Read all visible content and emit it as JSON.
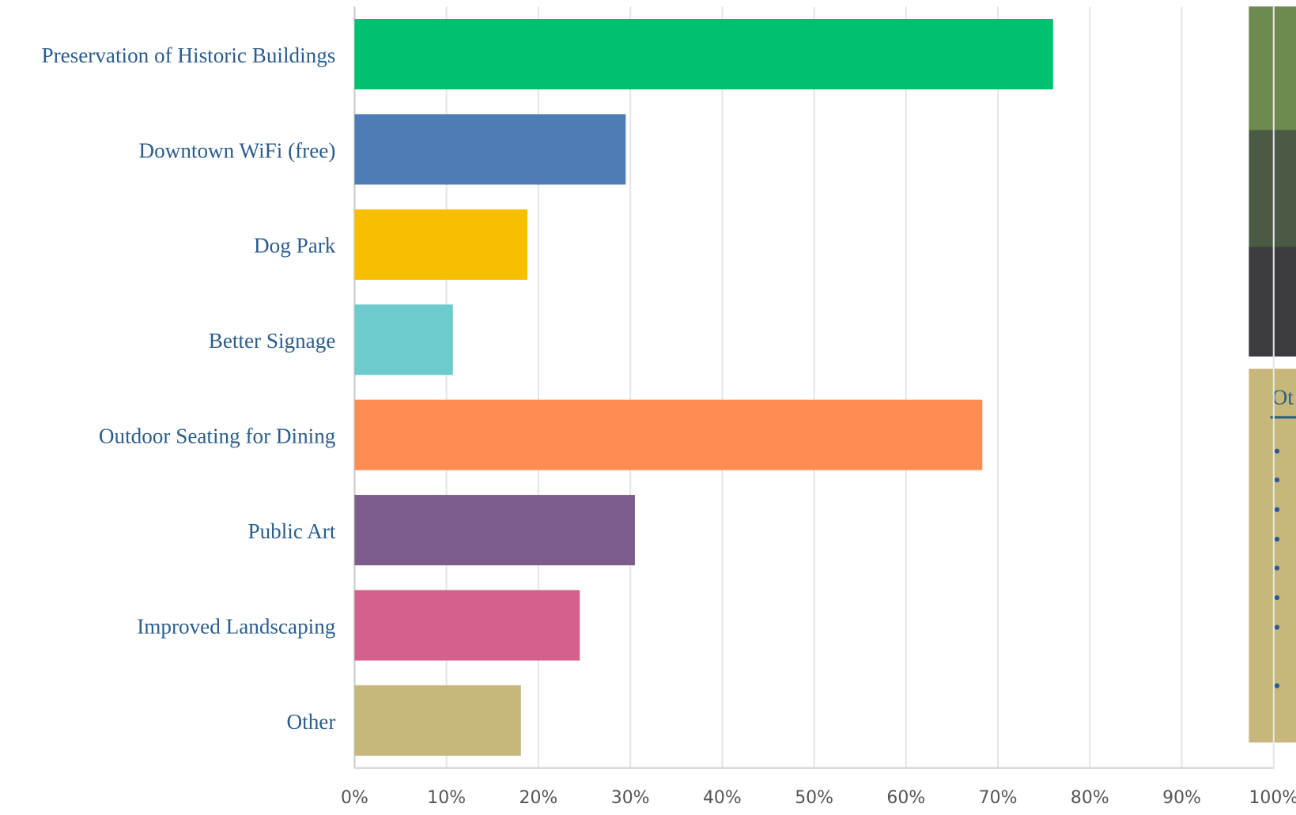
{
  "chart_data": {
    "type": "bar",
    "orientation": "horizontal",
    "categories": [
      "Preservation of Historic Buildings",
      "Downtown WiFi (free)",
      "Dog Park",
      "Better Signage",
      "Outdoor Seating for Dining",
      "Public Art",
      "Improved Landscaping",
      "Other"
    ],
    "values": [
      76,
      29.5,
      18.8,
      10.7,
      68.3,
      30.5,
      24.5,
      18.1
    ],
    "colors": [
      "#00c170",
      "#4e7cb4",
      "#f7bf00",
      "#6dcbcc",
      "#ff8c52",
      "#7e5d8e",
      "#d5608e",
      "#c8b77a"
    ],
    "xlim": [
      0,
      100
    ],
    "xticks": [
      {
        "value": 0,
        "label": "0%"
      },
      {
        "value": 10,
        "label": "10%"
      },
      {
        "value": 20,
        "label": "20%"
      },
      {
        "value": 30,
        "label": "30%"
      },
      {
        "value": 40,
        "label": "40%"
      },
      {
        "value": 50,
        "label": "50%"
      },
      {
        "value": 60,
        "label": "60%"
      },
      {
        "value": 70,
        "label": "70%"
      },
      {
        "value": 80,
        "label": "80%"
      },
      {
        "value": 90,
        "label": "90%"
      },
      {
        "value": 100,
        "label": "100%"
      }
    ],
    "grid": true
  },
  "sidebar": {
    "heading": "Ot"
  }
}
